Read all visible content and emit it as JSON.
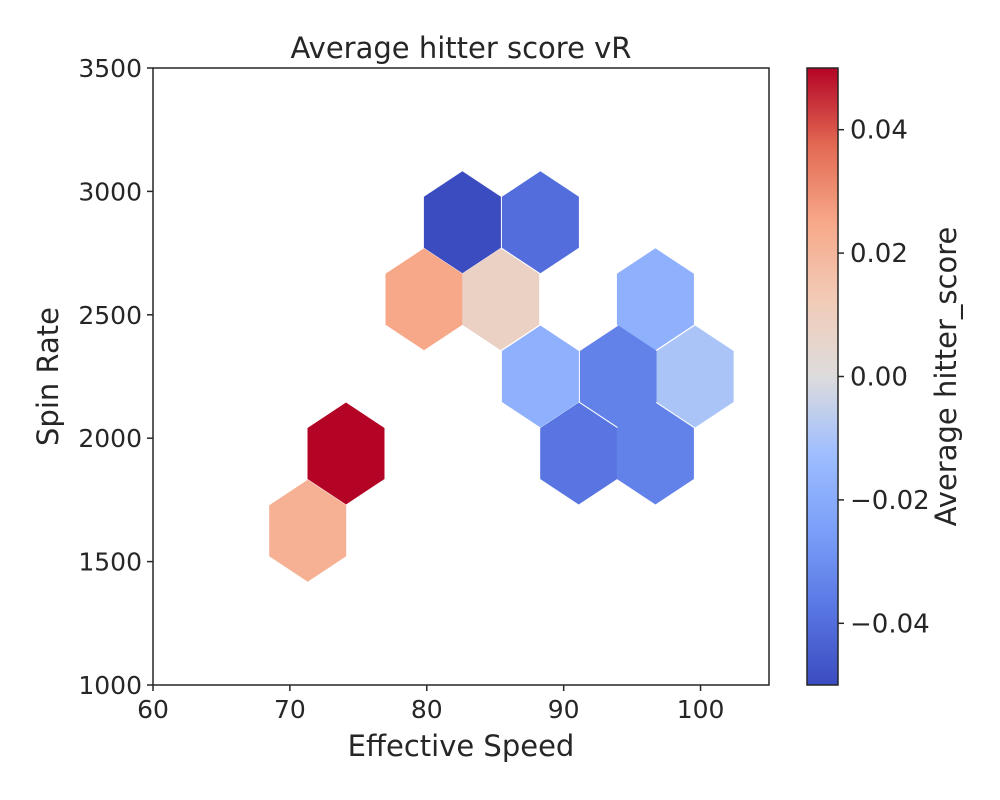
{
  "chart_data": {
    "type": "hexbin",
    "title": "Average hitter score vR",
    "xlabel": "Effective Speed",
    "ylabel": "Spin Rate",
    "xlim": [
      60,
      105
    ],
    "ylim": [
      1000,
      3500
    ],
    "xticks": [
      60,
      70,
      80,
      90,
      100
    ],
    "yticks": [
      1000,
      1500,
      2000,
      2500,
      3000,
      3500
    ],
    "grid": false,
    "colormap": "coolwarm",
    "colorbar": {
      "label": "Average hitter_score",
      "range": [
        -0.05,
        0.05
      ],
      "ticks": [
        -0.04,
        -0.02,
        0.0,
        0.02,
        0.04
      ],
      "tick_labels": [
        "−0.04",
        "−0.02",
        "0.00",
        "0.02",
        "0.04"
      ]
    },
    "bins": [
      {
        "x": 82.6,
        "y": 2875,
        "value": -0.05
      },
      {
        "x": 88.3,
        "y": 2875,
        "value": -0.04
      },
      {
        "x": 79.8,
        "y": 2563,
        "value": 0.025
      },
      {
        "x": 85.4,
        "y": 2563,
        "value": 0.008
      },
      {
        "x": 96.7,
        "y": 2563,
        "value": -0.018
      },
      {
        "x": 88.3,
        "y": 2250,
        "value": -0.018
      },
      {
        "x": 94.0,
        "y": 2250,
        "value": -0.034
      },
      {
        "x": 99.6,
        "y": 2250,
        "value": -0.01
      },
      {
        "x": 74.1,
        "y": 1938,
        "value": 0.05
      },
      {
        "x": 91.1,
        "y": 1938,
        "value": -0.038
      },
      {
        "x": 96.7,
        "y": 1938,
        "value": -0.034
      },
      {
        "x": 71.3,
        "y": 1625,
        "value": 0.022
      }
    ]
  }
}
